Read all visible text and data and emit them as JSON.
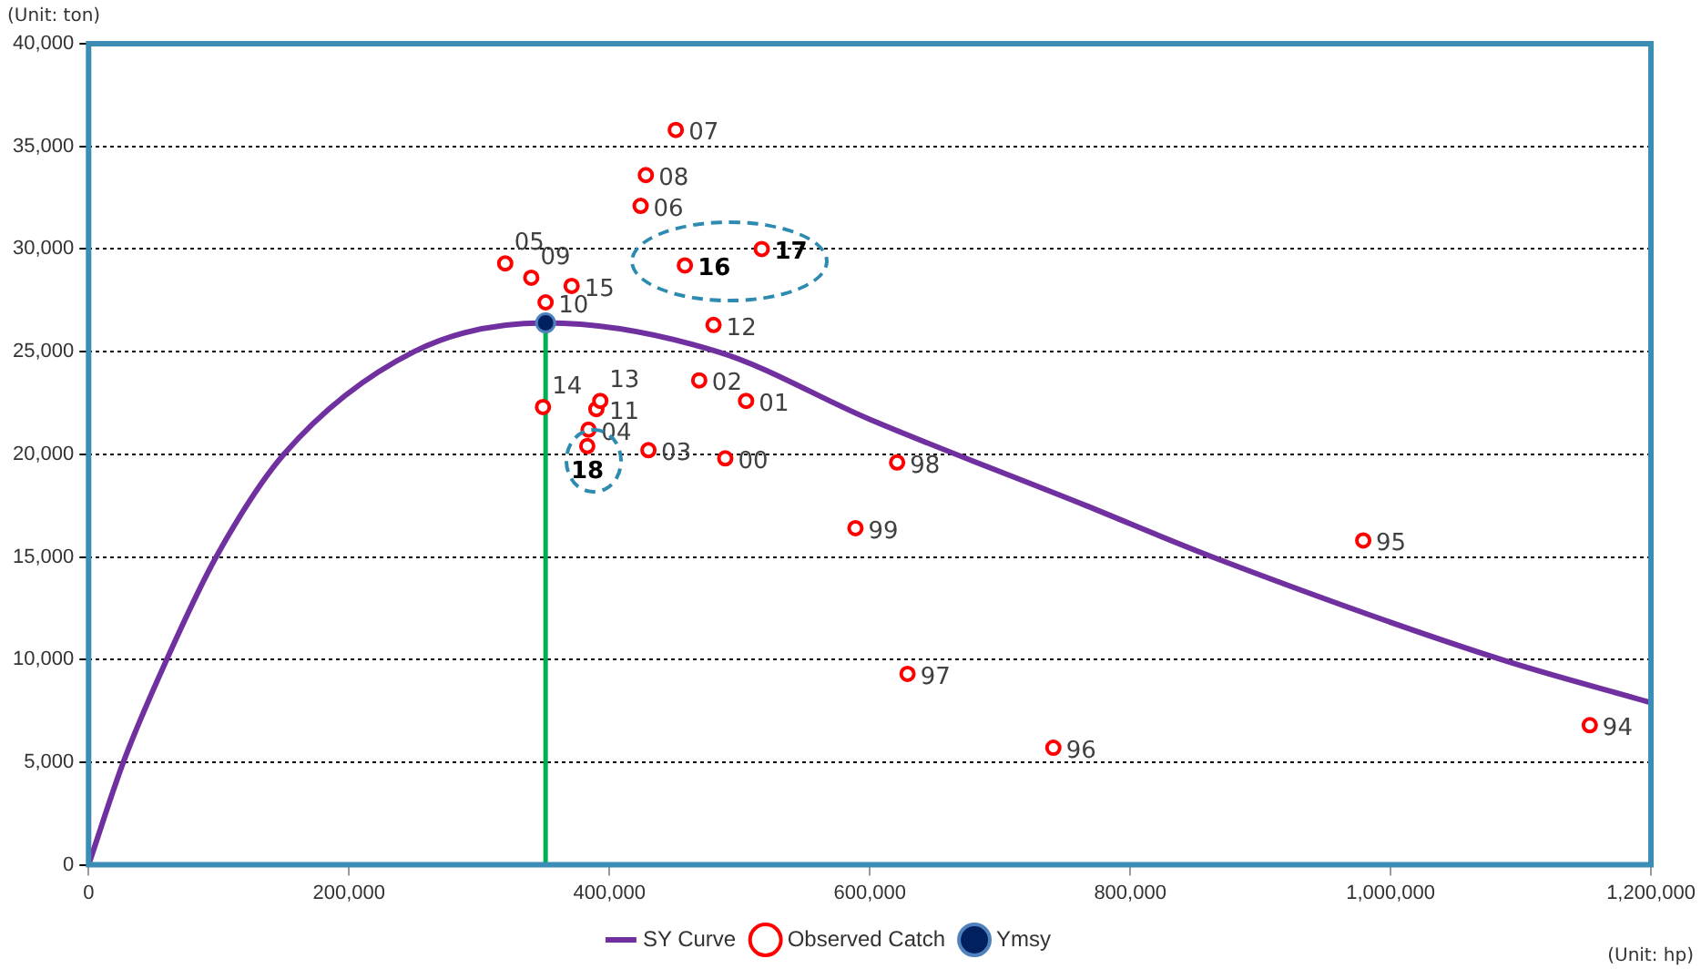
{
  "chart_data": {
    "type": "scatter",
    "xlabel": "(Unit: hp)",
    "ylabel": "(Unit: ton)",
    "xlim": [
      0,
      1200000
    ],
    "xticks": [
      {
        "value": 0,
        "label": "0"
      },
      {
        "value": 200000,
        "label": "200,000"
      },
      {
        "value": 400000,
        "label": "400,000"
      },
      {
        "value": 600000,
        "label": "600,000"
      },
      {
        "value": 800000,
        "label": "800,000"
      },
      {
        "value": 1000000,
        "label": "1,000,000"
      },
      {
        "value": 1200000,
        "label": "1,200,000"
      }
    ],
    "ylim": [
      0,
      40000
    ],
    "yticks": [
      {
        "value": 0,
        "label": "0"
      },
      {
        "value": 5000,
        "label": "5,000"
      },
      {
        "value": 10000,
        "label": "10,000"
      },
      {
        "value": 15000,
        "label": "15,000"
      },
      {
        "value": 20000,
        "label": "20,000"
      },
      {
        "value": 25000,
        "label": "25,000"
      },
      {
        "value": 30000,
        "label": "30,000"
      },
      {
        "value": 35000,
        "label": "35,000"
      },
      {
        "value": 40000,
        "label": "40,000"
      }
    ],
    "grid": "y",
    "legend": "bottom",
    "series": [
      {
        "name": "SY Curve",
        "type": "line",
        "color": "#7030a0",
        "marker": "none",
        "line_style": "solid",
        "x": [
          0,
          26700,
          60000,
          98000,
          150000,
          250000,
          351000,
          483000,
          600000,
          766000,
          863000,
          1085000,
          1200000
        ],
        "values": [
          0,
          5000,
          10000,
          15000,
          20000,
          25000,
          26400,
          25000,
          21700,
          17500,
          15000,
          10000,
          7900
        ]
      },
      {
        "name": "Observed Catch",
        "type": "scatter",
        "color": "#ff0000",
        "marker": "circle",
        "x": [
          1153000,
          979000,
          741000,
          629000,
          621000,
          589000,
          489000,
          505000,
          469000,
          430000,
          384000,
          320000,
          424000,
          451000,
          428000,
          340000,
          351000,
          390000,
          480000,
          393000,
          349000,
          371000,
          458000,
          517000,
          383000
        ],
        "values": [
          6800,
          15800,
          5700,
          9300,
          19600,
          16400,
          19800,
          22600,
          23600,
          20200,
          21200,
          29300,
          32100,
          35800,
          33600,
          28600,
          27400,
          22200,
          26300,
          22600,
          22300,
          28200,
          29200,
          30000,
          20400
        ]
      },
      {
        "name": "Ymsy",
        "type": "scatter",
        "color": "#002060",
        "marker": "circle",
        "x": [
          351000
        ],
        "values": [
          26400
        ]
      },
      {
        "type": "line",
        "color": "#00b050",
        "marker": "none",
        "line_style": "solid",
        "x": [
          351000,
          351000
        ],
        "values": [
          0,
          26400
        ]
      }
    ],
    "annotations": [
      {
        "text": "94",
        "x": 1153000,
        "y": 6800
      },
      {
        "text": "95",
        "x": 979000,
        "y": 15800
      },
      {
        "text": "96",
        "x": 741000,
        "y": 5700
      },
      {
        "text": "97",
        "x": 629000,
        "y": 9300
      },
      {
        "text": "98",
        "x": 621000,
        "y": 19600
      },
      {
        "text": "99",
        "x": 589000,
        "y": 16400
      },
      {
        "text": "00",
        "x": 489000,
        "y": 19800
      },
      {
        "text": "01",
        "x": 505000,
        "y": 22600
      },
      {
        "text": "02",
        "x": 469000,
        "y": 23600
      },
      {
        "text": "03",
        "x": 430000,
        "y": 20200
      },
      {
        "text": "04",
        "x": 384000,
        "y": 21200
      },
      {
        "text": "05",
        "x": 320000,
        "y": 29300
      },
      {
        "text": "06",
        "x": 424000,
        "y": 32100
      },
      {
        "text": "07",
        "x": 451000,
        "y": 35800
      },
      {
        "text": "08",
        "x": 428000,
        "y": 33600
      },
      {
        "text": "09",
        "x": 340000,
        "y": 28600
      },
      {
        "text": "10",
        "x": 351000,
        "y": 27400
      },
      {
        "text": "11",
        "x": 390000,
        "y": 22200
      },
      {
        "text": "12",
        "x": 480000,
        "y": 26300
      },
      {
        "text": "13",
        "x": 393000,
        "y": 22600
      },
      {
        "text": "14",
        "x": 349000,
        "y": 22300
      },
      {
        "text": "15",
        "x": 371000,
        "y": 28200
      },
      {
        "text": "16",
        "x": 458000,
        "y": 29200
      },
      {
        "text": "17",
        "x": 517000,
        "y": 30000
      },
      {
        "text": "18",
        "x": 383000,
        "y": 20400
      }
    ]
  }
}
